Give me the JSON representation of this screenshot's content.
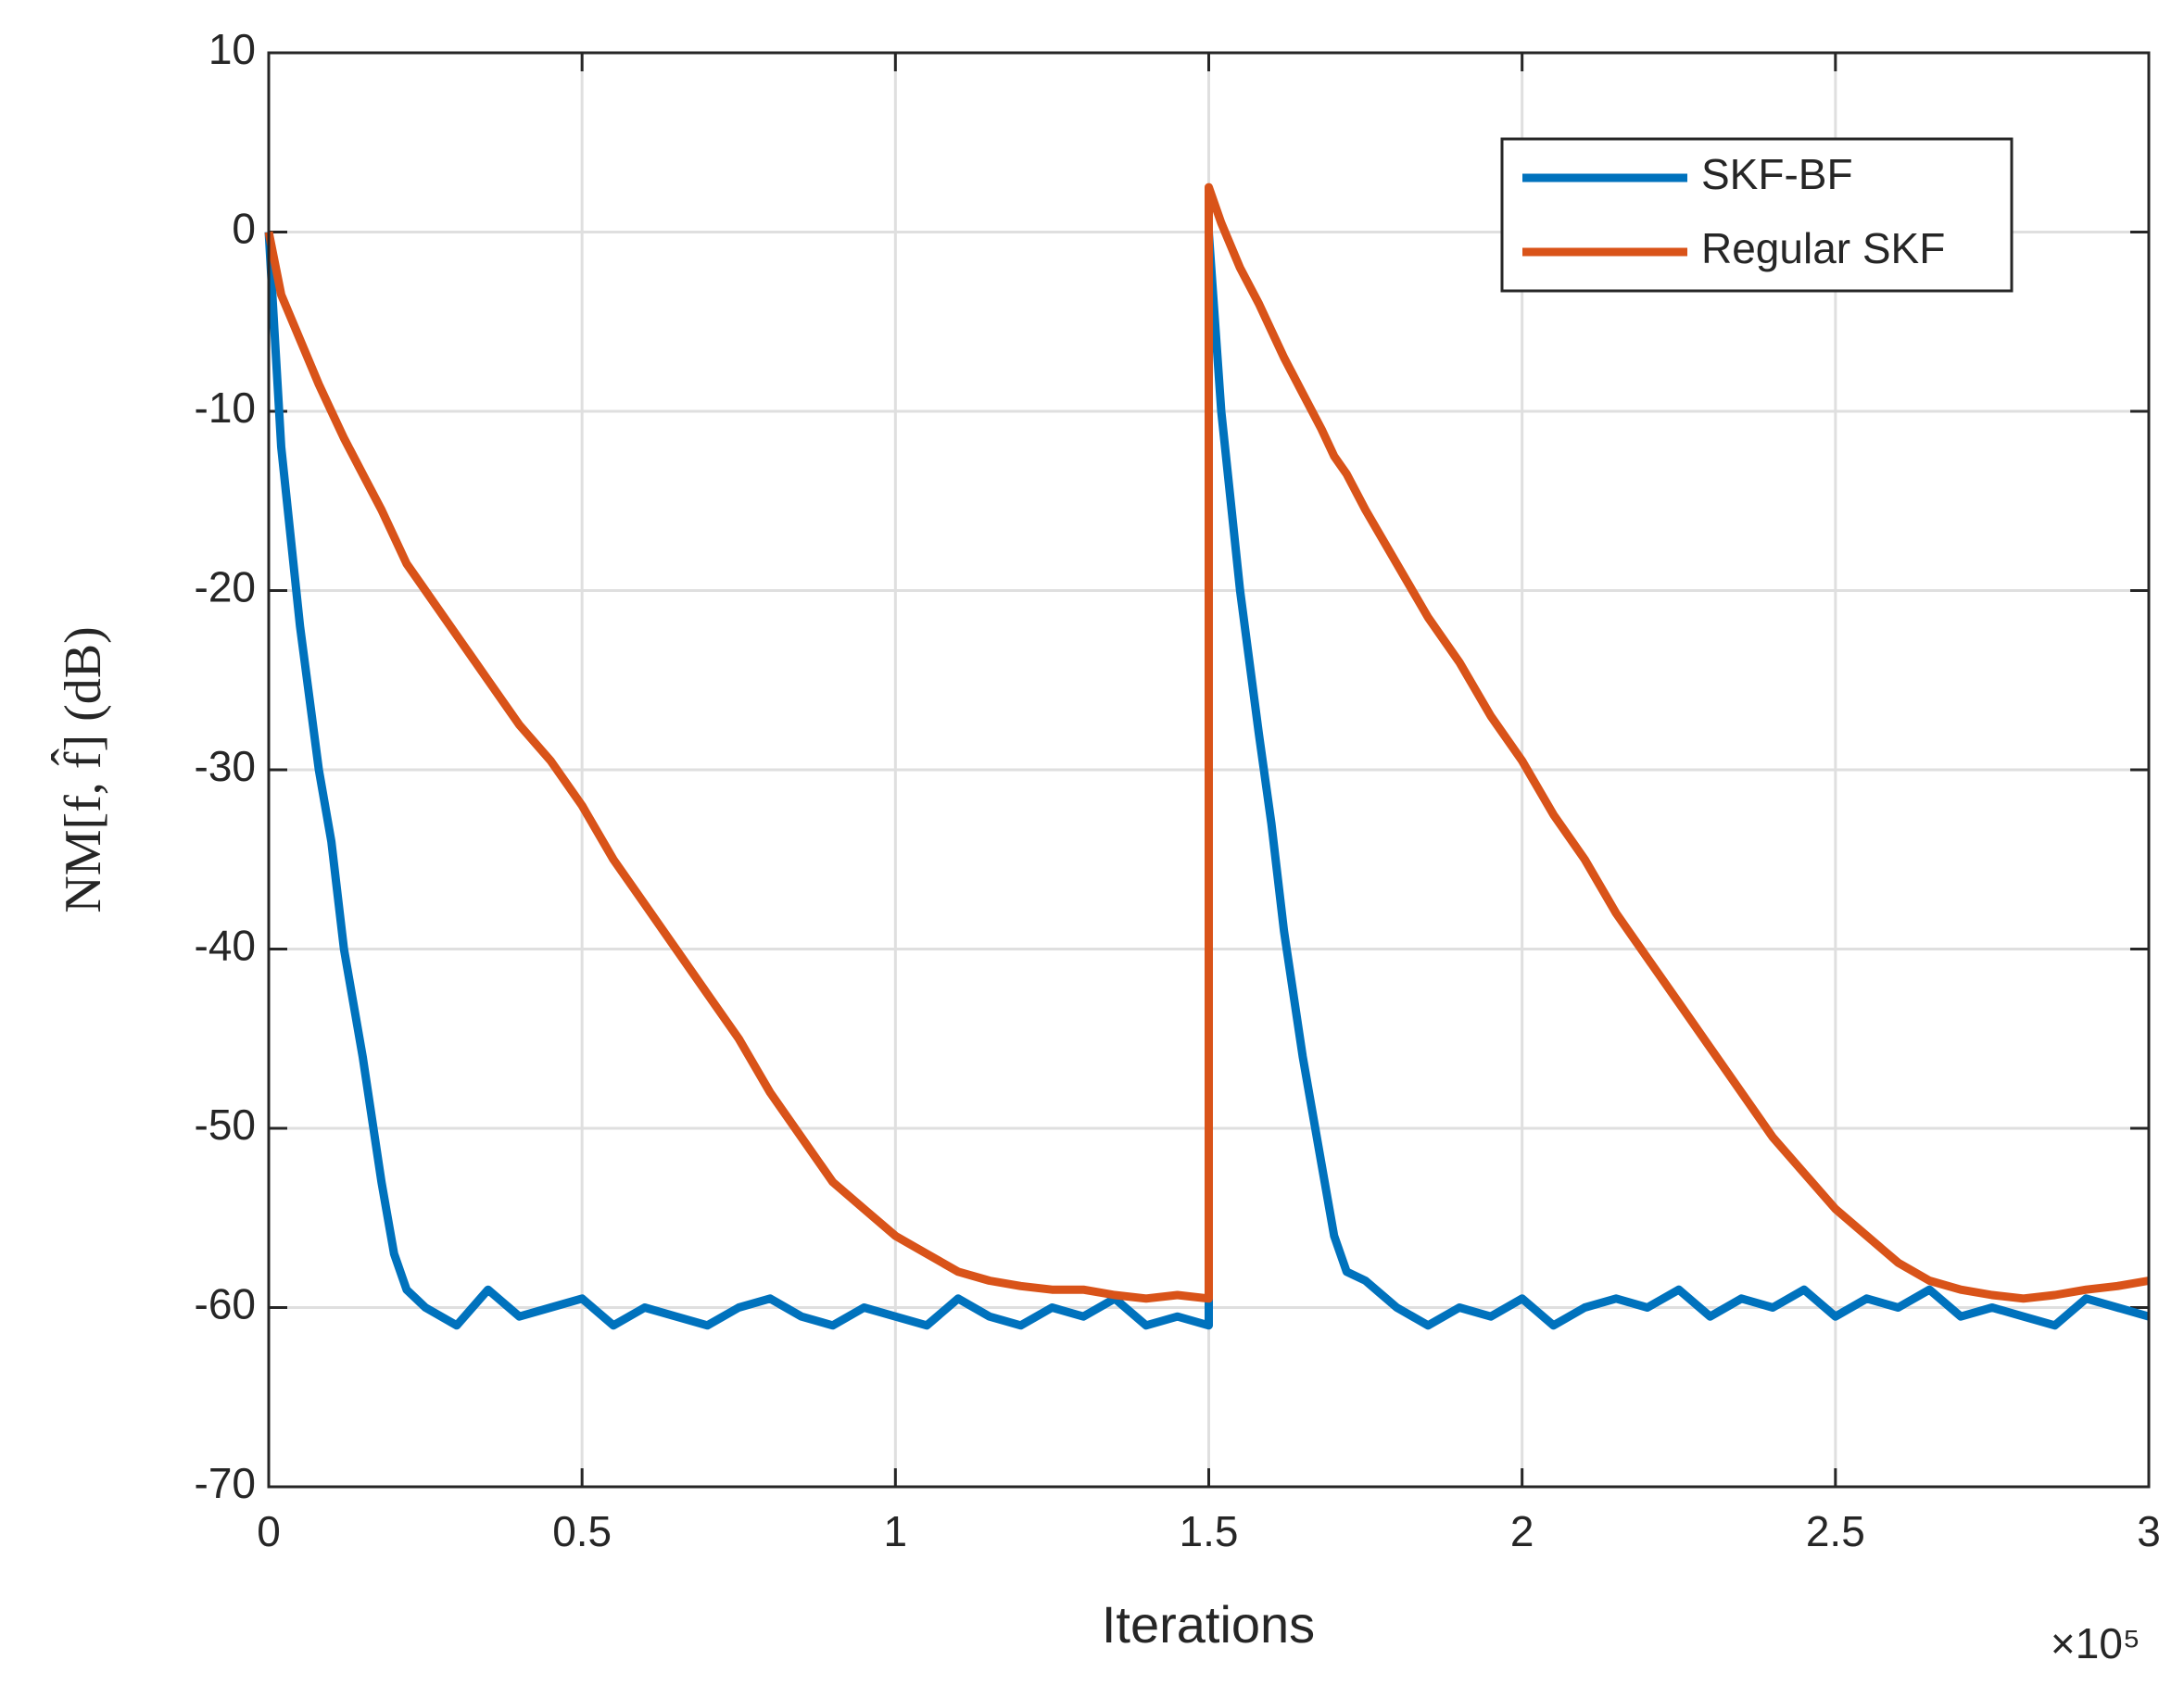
{
  "chart_data": {
    "type": "line",
    "xlabel": "Iterations",
    "ylabel": "NM[f, f̂] (dB)",
    "x_scale": "×10⁵",
    "x": [
      0,
      0.02,
      0.05,
      0.08,
      0.1,
      0.12,
      0.15,
      0.18,
      0.2,
      0.22,
      0.25,
      0.3,
      0.35,
      0.4,
      0.45,
      0.5,
      0.55,
      0.6,
      0.65,
      0.7,
      0.75,
      0.8,
      0.85,
      0.9,
      0.95,
      1.0,
      1.05,
      1.1,
      1.15,
      1.2,
      1.25,
      1.3,
      1.35,
      1.4,
      1.45,
      1.5,
      1.5,
      1.52,
      1.55,
      1.58,
      1.6,
      1.62,
      1.65,
      1.68,
      1.7,
      1.72,
      1.75,
      1.8,
      1.85,
      1.9,
      1.95,
      2.0,
      2.05,
      2.1,
      2.15,
      2.2,
      2.25,
      2.3,
      2.35,
      2.4,
      2.45,
      2.5,
      2.55,
      2.6,
      2.65,
      2.7,
      2.75,
      2.8,
      2.85,
      2.9,
      2.95,
      3.0
    ],
    "series": [
      {
        "name": "SKF-BF",
        "color": "#0072bd",
        "values": [
          0,
          -12,
          -22,
          -30,
          -34,
          -40,
          -46,
          -53,
          -57,
          -59,
          -60,
          -61,
          -59,
          -60.5,
          -60,
          -59.5,
          -61,
          -60,
          -60.5,
          -61,
          -60,
          -59.5,
          -60.5,
          -61,
          -60,
          -60.5,
          -61,
          -59.5,
          -60.5,
          -61,
          -60,
          -60.5,
          -59.5,
          -61,
          -60.5,
          -61,
          0,
          -10,
          -20,
          -28,
          -33,
          -39,
          -46,
          -52,
          -56,
          -58,
          -58.5,
          -60,
          -61,
          -60,
          -60.5,
          -59.5,
          -61,
          -60,
          -59.5,
          -60,
          -59,
          -60.5,
          -59.5,
          -60,
          -59,
          -60.5,
          -59.5,
          -60,
          -59,
          -60.5,
          -60,
          -60.5,
          -61,
          -59.5,
          -60,
          -60.5
        ]
      },
      {
        "name": "Regular SKF",
        "color": "#d95319",
        "values": [
          0,
          -3.5,
          -6,
          -8.5,
          -10,
          -11.5,
          -13.5,
          -15.5,
          -17,
          -18.5,
          -20,
          -22.5,
          -25,
          -27.5,
          -29.5,
          -32,
          -35,
          -37.5,
          -40,
          -42.5,
          -45,
          -48,
          -50.5,
          -53,
          -54.5,
          -56,
          -57,
          -58,
          -58.5,
          -58.8,
          -59,
          -59,
          -59.3,
          -59.5,
          -59.3,
          -59.5,
          2.5,
          0.5,
          -2,
          -4,
          -5.5,
          -7,
          -9,
          -11,
          -12.5,
          -13.5,
          -15.5,
          -18.5,
          -21.5,
          -24,
          -27,
          -29.5,
          -32.5,
          -35,
          -38,
          -40.5,
          -43,
          -45.5,
          -48,
          -50.5,
          -52.5,
          -54.5,
          -56,
          -57.5,
          -58.5,
          -59,
          -59.3,
          -59.5,
          -59.3,
          -59,
          -58.8,
          -58.5
        ]
      }
    ],
    "xlim": [
      0,
      3
    ],
    "xticks": [
      0,
      0.5,
      1,
      1.5,
      2,
      2.5,
      3
    ],
    "ylim": [
      -70,
      10
    ],
    "yticks": [
      -70,
      -60,
      -50,
      -40,
      -30,
      -20,
      -10,
      0,
      10
    ],
    "grid": true,
    "legend": "upper right"
  }
}
